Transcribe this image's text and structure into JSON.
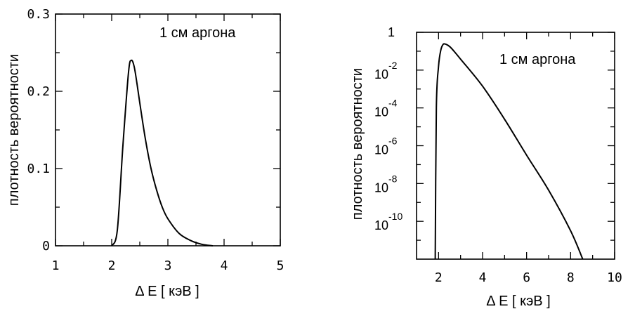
{
  "chart_data": [
    {
      "type": "line",
      "annotation": "1 см аргона",
      "ylabel": "плотность вероятности",
      "xlabel": "Δ E [ кэВ ]",
      "xlim": [
        1,
        5
      ],
      "ylim": [
        0,
        0.3
      ],
      "y_scale": "linear",
      "x_ticks": [
        1,
        2,
        3,
        4,
        5
      ],
      "x_ticklabels": [
        "1",
        "2",
        "3",
        "4",
        "5"
      ],
      "y_ticks": [
        0,
        0.1,
        0.2,
        0.3
      ],
      "y_ticklabels": [
        "0",
        "0.1",
        "0.2",
        "0.3"
      ],
      "grid": false,
      "series": [
        {
          "x": [
            2.0,
            2.1,
            2.2,
            2.3,
            2.35,
            2.4,
            2.45,
            2.5,
            2.6,
            2.7,
            2.8,
            2.9,
            3.0,
            3.2,
            3.4,
            3.6,
            3.8
          ],
          "y": [
            0.0,
            0.02,
            0.13,
            0.225,
            0.24,
            0.232,
            0.21,
            0.185,
            0.138,
            0.1,
            0.072,
            0.05,
            0.035,
            0.016,
            0.007,
            0.002,
            0.0
          ]
        }
      ]
    },
    {
      "type": "line",
      "annotation": "1 см аргона",
      "ylabel": "плотность вероятности",
      "xlabel": "Δ E [ кэВ ]",
      "xlim": [
        1,
        10
      ],
      "ylim": [
        -12,
        0
      ],
      "y_scale": "log",
      "x_ticks": [
        2,
        4,
        6,
        8,
        10
      ],
      "x_ticklabels": [
        "2",
        "4",
        "6",
        "8",
        "10"
      ],
      "y_ticks": [
        0,
        -2,
        -4,
        -6,
        -8,
        -10
      ],
      "y_ticklabels": [
        {
          "base": "1",
          "exp": ""
        },
        {
          "base": "10",
          "exp": "-2"
        },
        {
          "base": "10",
          "exp": "-4"
        },
        {
          "base": "10",
          "exp": "-6"
        },
        {
          "base": "10",
          "exp": "-8"
        },
        {
          "base": "10",
          "exp": "-10"
        }
      ],
      "grid": false,
      "series": [
        {
          "x": [
            1.85,
            1.9,
            2.0,
            2.1,
            2.2,
            2.3,
            2.5,
            2.7,
            3.0,
            4.0,
            5.0,
            6.0,
            7.0,
            8.0,
            8.55
          ],
          "y": [
            -12,
            -4.0,
            -1.8,
            -0.95,
            -0.65,
            -0.62,
            -0.75,
            -1.0,
            -1.42,
            -2.85,
            -4.6,
            -6.5,
            -8.35,
            -10.5,
            -12
          ]
        }
      ]
    }
  ]
}
